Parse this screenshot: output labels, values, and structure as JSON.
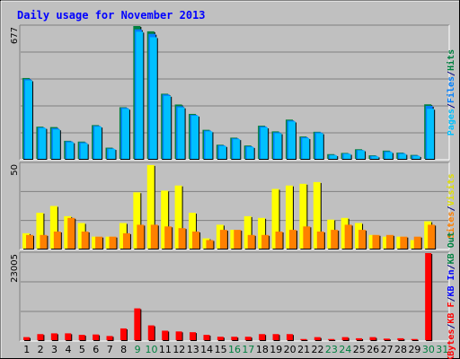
{
  "chart_data": {
    "type": "bar",
    "title": "Daily usage for November 2013",
    "categories": [
      "1",
      "2",
      "3",
      "4",
      "5",
      "6",
      "7",
      "8",
      "9",
      "10",
      "11",
      "12",
      "13",
      "14",
      "15",
      "16",
      "17",
      "18",
      "19",
      "20",
      "21",
      "22",
      "23",
      "24",
      "25",
      "26",
      "27",
      "28",
      "29",
      "30",
      "31"
    ],
    "weekend_days": [
      "9",
      "10",
      "16",
      "17",
      "23",
      "24",
      "30",
      "31"
    ],
    "panels": [
      {
        "name": "hits-files-pages",
        "ymax_label": "677",
        "ylim": [
          0,
          677
        ],
        "legend": [
          {
            "text": "Pages",
            "color": "#00c0ff"
          },
          {
            "text": "/",
            "color": "#000080"
          },
          {
            "text": "Files",
            "color": "#0080ff"
          },
          {
            "text": "/",
            "color": "#000080"
          },
          {
            "text": "Hits",
            "color": "#008040"
          }
        ],
        "series": [
          {
            "name": "Hits",
            "color": "#008040",
            "values": [
              412,
              164,
              162,
              92,
              88,
              172,
              57,
              263,
              677,
              650,
              332,
              277,
              229,
              148,
              72,
              108,
              68,
              169,
              140,
              200,
              114,
              138,
              24,
              30,
              49,
              18,
              42,
              32,
              20,
              278,
              0
            ]
          },
          {
            "name": "Files",
            "color": "#0080ff",
            "values": [
              406,
              160,
              156,
              89,
              84,
              168,
              53,
              260,
              660,
              637,
              328,
              268,
              224,
              144,
              69,
              104,
              64,
              165,
              135,
              195,
              110,
              135,
              20,
              27,
              45,
              15,
              38,
              29,
              17,
              270,
              0
            ]
          },
          {
            "name": "Pages",
            "color": "#00c0ff",
            "values": [
              400,
              157,
              150,
              84,
              79,
              164,
              50,
              255,
              648,
              620,
              321,
              262,
              220,
              140,
              65,
              100,
              60,
              160,
              130,
              190,
              105,
              130,
              18,
              25,
              43,
              12,
              34,
              25,
              14,
              255,
              0
            ]
          }
        ]
      },
      {
        "name": "visits-sites",
        "ymax_label": "50",
        "ylim": [
          0,
          50
        ],
        "legend": [
          {
            "text": "Sites",
            "color": "#ff8000"
          },
          {
            "text": "/",
            "color": "#000080"
          },
          {
            "text": "Visits",
            "color": "#e0e000"
          }
        ],
        "series": [
          {
            "name": "Visits",
            "color": "#ffff00",
            "values": [
              9,
              21,
              25,
              19,
              15,
              7,
              7,
              15,
              33,
              49,
              34,
              37,
              21,
              6,
              14,
              11,
              19,
              18,
              35,
              37,
              38,
              39,
              17,
              18,
              15,
              8,
              7,
              7,
              5,
              16,
              0
            ]
          },
          {
            "name": "Sites",
            "color": "#ff8000",
            "values": [
              8,
              8,
              10,
              18,
              10,
              7,
              7,
              9,
              14,
              14,
              13,
              12,
              10,
              5,
              11,
              11,
              8,
              8,
              10,
              11,
              13,
              10,
              11,
              14,
              11,
              8,
              8,
              7,
              7,
              14,
              0
            ]
          }
        ]
      },
      {
        "name": "kbytes",
        "ymax_label": "23005",
        "ylim": [
          0,
          23005
        ],
        "legend": [
          {
            "text": "KBytes",
            "color": "#ff0000"
          },
          {
            "text": "/",
            "color": "#000080"
          },
          {
            "text": "KB F",
            "color": "#ff0000"
          },
          {
            "text": "/",
            "color": "#000080"
          },
          {
            "text": "KB In",
            "color": "#0000ff"
          },
          {
            "text": "/",
            "color": "#000080"
          },
          {
            "text": "KB Out",
            "color": "#008040"
          }
        ],
        "series": [
          {
            "name": "KB F",
            "color": "#ff0000",
            "values": [
              800,
              1600,
              1800,
              1800,
              1400,
              1500,
              1100,
              3100,
              8400,
              3900,
              2500,
              2300,
              2100,
              1400,
              900,
              900,
              900,
              1600,
              1600,
              1600,
              300,
              800,
              300,
              800,
              500,
              800,
              400,
              500,
              300,
              23005,
              0
            ]
          }
        ]
      }
    ]
  }
}
